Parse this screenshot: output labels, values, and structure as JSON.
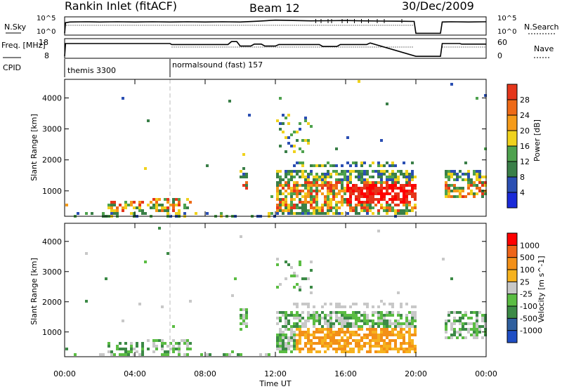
{
  "header": {
    "station": "Rankin Inlet (fitACF)",
    "beam": "Beam 12",
    "date": "30/Dec/2009"
  },
  "colors": {
    "power_scale": [
      "#1a2ad8",
      "#2b4fb3",
      "#3a7f48",
      "#4ea24e",
      "#f0d21d",
      "#f59b1a",
      "#ee6a17",
      "#e5361b",
      "#ff0000"
    ],
    "velocity_scale": [
      "#1f4ec4",
      "#2f5f9e",
      "#3c8a46",
      "#5bbd43",
      "#c8c8c8",
      "#f6b21e",
      "#f39018",
      "#ee6418",
      "#ff0000"
    ]
  },
  "chart_data": [
    {
      "type": "line",
      "name": "noise-panel",
      "left_label": "N.Sky",
      "right_label": "N.Search",
      "left_ticks": [
        "10^5",
        "10^0"
      ],
      "right_ticks": [
        "10^5",
        "10^0"
      ],
      "x_range_hours": [
        0,
        24
      ],
      "series": [
        {
          "x": [
            0,
            0.05,
            0.3,
            1.2,
            2.0,
            3.0,
            4.0,
            5.0,
            6.0,
            7.0,
            8.0,
            9.0,
            10.0,
            11.0,
            12.0,
            13.0,
            14.0,
            15.0,
            16.0,
            17.0,
            18.0,
            19.0,
            19.9,
            20.0,
            21.4,
            21.5,
            22.0,
            23.0,
            24.0
          ],
          "y": [
            0.1,
            0.68,
            0.72,
            0.73,
            0.72,
            0.73,
            0.72,
            0.73,
            0.72,
            0.73,
            0.72,
            0.73,
            0.72,
            0.76,
            0.82,
            0.8,
            0.78,
            0.79,
            0.8,
            0.78,
            0.77,
            0.76,
            0.75,
            0.1,
            0.1,
            0.72,
            0.73,
            0.72,
            0.73
          ]
        }
      ]
    },
    {
      "type": "line",
      "name": "frequency-panel",
      "left_label": "Freq. [MHz]",
      "right_label": "Nave",
      "left_ticks": [
        "18",
        "8"
      ],
      "right_ticks": [
        "60",
        "0"
      ],
      "x_range_hours": [
        0,
        24
      ],
      "series": [
        {
          "x": [
            0,
            0.05,
            6.0,
            6.1,
            9.3,
            9.5,
            9.8,
            10.0,
            10.6,
            10.8,
            11.2,
            11.4,
            12.0,
            12.2,
            14.5,
            14.7,
            15.5,
            15.7,
            17.2,
            17.4,
            20.0,
            21.4,
            21.5,
            22.5,
            22.6,
            24.0
          ],
          "y": [
            0.1,
            0.75,
            0.75,
            0.7,
            0.7,
            0.85,
            0.85,
            0.62,
            0.62,
            0.72,
            0.72,
            0.62,
            0.62,
            0.7,
            0.7,
            0.6,
            0.6,
            0.7,
            0.7,
            0.78,
            0.1,
            0.1,
            0.75,
            0.75,
            0.72,
            0.72
          ]
        }
      ]
    },
    {
      "type": "table",
      "name": "cpid-bar",
      "label": "CPID",
      "segments": [
        {
          "start_hour": 0,
          "end_hour": 6,
          "text": "themis 3300"
        },
        {
          "start_hour": 6,
          "end_hour": 24,
          "text": "normalsound (fast) 157"
        }
      ]
    },
    {
      "type": "heatmap",
      "name": "power-panel",
      "ylabel": "Slant Range [km]",
      "ylim": [
        180,
        4600
      ],
      "yticks": [
        1000,
        2000,
        3000,
        4000
      ],
      "colorbar_label": "Power [dB]",
      "colorbar_ticks": [
        4,
        8,
        12,
        16,
        20,
        24,
        28
      ],
      "colorbar_range": [
        0,
        30
      ]
    },
    {
      "type": "heatmap",
      "name": "velocity-panel",
      "ylabel": "Slant Range [km]",
      "ylim": [
        180,
        4600
      ],
      "yticks": [
        1000,
        2000,
        3000,
        4000
      ],
      "colorbar_label": "Velocity [m s^-1]",
      "colorbar_ticks": [
        "1000",
        "500",
        "100",
        "25",
        "-25",
        "-100",
        "-500",
        "-1000"
      ]
    }
  ],
  "x_axis": {
    "label": "Time UT",
    "tick_hours": [
      0,
      4,
      8,
      12,
      16,
      20,
      24
    ],
    "tick_labels": [
      "00:00",
      "04:00",
      "08:00",
      "12:00",
      "16:00",
      "20:00",
      "00:00"
    ]
  }
}
